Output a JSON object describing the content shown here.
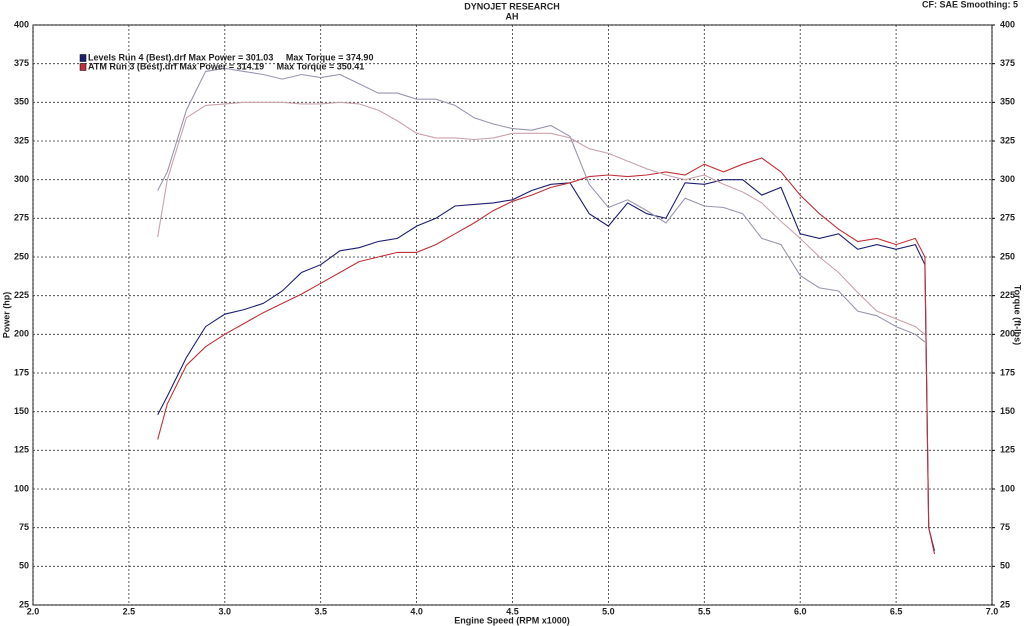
{
  "chart_data": {
    "type": "line",
    "title": "DYNOJET RESEARCH",
    "subtitle": "AH",
    "annotation": "CF: SAE  Smoothing: 5",
    "xlabel": "Engine Speed (RPM x1000)",
    "ylabel": "Power (hp)",
    "y2label": "Torque (ft-lbs)",
    "x": [
      2.65,
      2.7,
      2.8,
      2.9,
      3.0,
      3.1,
      3.2,
      3.3,
      3.4,
      3.5,
      3.6,
      3.7,
      3.8,
      3.9,
      4.0,
      4.1,
      4.2,
      4.3,
      4.4,
      4.5,
      4.6,
      4.7,
      4.8,
      4.9,
      5.0,
      5.1,
      5.2,
      5.3,
      5.4,
      5.5,
      5.6,
      5.7,
      5.8,
      5.9,
      6.0,
      6.1,
      6.2,
      6.3,
      6.4,
      6.5,
      6.6,
      6.65,
      6.67,
      6.7
    ],
    "series": [
      {
        "name": "Levels Run 4 (Best).drf Max Power = 301.03     Max Torque = 374.90",
        "color": "#1c1f6e",
        "values": [
          148,
          160,
          185,
          205,
          213,
          216,
          220,
          228,
          240,
          245,
          254,
          256,
          260,
          262,
          270,
          275,
          283,
          284,
          285,
          287,
          293,
          297,
          298,
          278,
          270,
          285,
          278,
          275,
          298,
          297,
          300,
          300,
          290,
          295,
          265,
          262,
          265,
          255,
          258,
          255,
          258,
          245,
          75,
          60
        ]
      },
      {
        "name": "ATM Run 3 (Best).drf Max Power = 314.19     Max Torque = 350.41",
        "color": "#c0303a",
        "values": [
          132,
          155,
          180,
          192,
          200,
          207,
          214,
          220,
          226,
          233,
          240,
          247,
          250,
          253,
          253,
          258,
          265,
          272,
          280,
          286,
          290,
          295,
          298,
          302,
          303,
          302,
          303,
          305,
          303,
          310,
          305,
          310,
          314,
          305,
          290,
          278,
          268,
          260,
          262,
          258,
          262,
          250,
          75,
          58
        ]
      },
      {
        "color": "#9a96ae",
        "axis": "y2",
        "values": [
          293,
          305,
          345,
          370,
          372,
          370,
          368,
          365,
          368,
          366,
          368,
          362,
          356,
          356,
          352,
          352,
          348,
          340,
          336,
          333,
          332,
          335,
          328,
          297,
          282,
          287,
          280,
          272,
          288,
          283,
          282,
          278,
          262,
          258,
          238,
          230,
          228,
          215,
          212,
          205,
          200,
          195,
          null,
          null
        ]
      },
      {
        "color": "#c9a3ab",
        "axis": "y2",
        "values": [
          263,
          300,
          340,
          348,
          349,
          350,
          350,
          350,
          349,
          349,
          350,
          349,
          345,
          338,
          330,
          327,
          327,
          326,
          327,
          330,
          330,
          330,
          327,
          320,
          317,
          312,
          307,
          303,
          300,
          303,
          297,
          292,
          285,
          273,
          262,
          250,
          240,
          227,
          215,
          210,
          205,
          200,
          null,
          null
        ]
      }
    ],
    "xlim": [
      2.0,
      7.0
    ],
    "xticks": [
      {
        "value": 2.0,
        "label": "2.0"
      },
      2.5,
      {
        "value": 3.0,
        "label": "3.0"
      },
      3.5,
      {
        "value": 4.0,
        "label": "4.0"
      },
      4.5,
      {
        "value": 5.0,
        "label": "5.0"
      },
      5.5,
      {
        "value": 6.0,
        "label": "6.0"
      },
      6.5,
      {
        "value": 7.0,
        "label": "7.0"
      }
    ],
    "ylim": [
      25,
      400
    ],
    "yticks": [
      25,
      50,
      75,
      100,
      125,
      150,
      175,
      200,
      225,
      250,
      275,
      300,
      325,
      350,
      375,
      400
    ],
    "y2lim": [
      25,
      400
    ],
    "y2ticks": [
      25,
      50,
      75,
      100,
      125,
      150,
      175,
      200,
      225,
      250,
      275,
      300,
      325,
      350,
      375,
      400
    ],
    "grid": true
  }
}
